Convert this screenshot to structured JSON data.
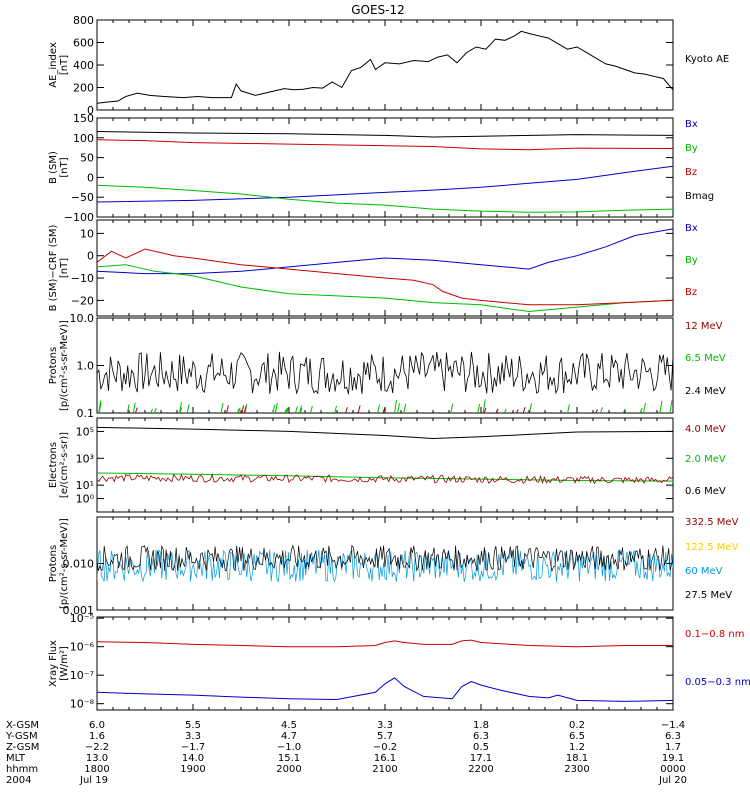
{
  "title": "GOES-12",
  "chart_data": [
    {
      "type": "line",
      "ylabel": [
        "AE_index",
        "[nT]"
      ],
      "ylim": [
        0,
        800
      ],
      "yticks": [
        "0",
        "200",
        "400",
        "600",
        "800"
      ],
      "legend": [
        {
          "label": "Kyoto AE",
          "color": "#000000"
        }
      ],
      "series": [
        {
          "name": "Kyoto AE",
          "color": "#000000",
          "points": [
            [
              0,
              60
            ],
            [
              0.1,
              70
            ],
            [
              0.22,
              80
            ],
            [
              0.3,
              120
            ],
            [
              0.42,
              150
            ],
            [
              0.55,
              130
            ],
            [
              0.7,
              120
            ],
            [
              0.9,
              110
            ],
            [
              1.05,
              120
            ],
            [
              1.2,
              110
            ],
            [
              1.4,
              110
            ],
            [
              1.45,
              230
            ],
            [
              1.5,
              170
            ],
            [
              1.65,
              130
            ],
            [
              1.8,
              160
            ],
            [
              1.95,
              190
            ],
            [
              2.05,
              180
            ],
            [
              2.15,
              185
            ],
            [
              2.25,
              200
            ],
            [
              2.35,
              195
            ],
            [
              2.45,
              250
            ],
            [
              2.55,
              200
            ],
            [
              2.65,
              350
            ],
            [
              2.75,
              380
            ],
            [
              2.85,
              450
            ],
            [
              2.9,
              360
            ],
            [
              3.0,
              420
            ],
            [
              3.15,
              410
            ],
            [
              3.3,
              440
            ],
            [
              3.45,
              430
            ],
            [
              3.55,
              470
            ],
            [
              3.65,
              490
            ],
            [
              3.75,
              420
            ],
            [
              3.85,
              510
            ],
            [
              3.95,
              560
            ],
            [
              4.05,
              540
            ],
            [
              4.15,
              630
            ],
            [
              4.25,
              620
            ],
            [
              4.35,
              660
            ],
            [
              4.42,
              700
            ],
            [
              4.5,
              680
            ],
            [
              4.6,
              660
            ],
            [
              4.7,
              640
            ],
            [
              4.8,
              590
            ],
            [
              4.9,
              540
            ],
            [
              5.0,
              560
            ],
            [
              5.1,
              510
            ],
            [
              5.2,
              460
            ],
            [
              5.3,
              410
            ],
            [
              5.4,
              390
            ],
            [
              5.5,
              360
            ],
            [
              5.6,
              330
            ],
            [
              5.7,
              320
            ],
            [
              5.8,
              300
            ],
            [
              5.9,
              280
            ],
            [
              6.0,
              180
            ]
          ]
        }
      ]
    },
    {
      "type": "line",
      "ylabel": [
        "B (SM)",
        "[nT]"
      ],
      "ylim": [
        -100,
        150
      ],
      "yticks": [
        "−100",
        "−50",
        "0",
        "50",
        "100",
        "150"
      ],
      "legend": [
        {
          "label": "Bx",
          "color": "#0000cc"
        },
        {
          "label": "By",
          "color": "#00bb00"
        },
        {
          "label": "Bz",
          "color": "#cc0000"
        },
        {
          "label": "Bmag",
          "color": "#000000"
        }
      ],
      "series": [
        {
          "name": "Bmag",
          "color": "#000000",
          "points": [
            [
              0,
              116
            ],
            [
              1,
              112
            ],
            [
              2,
              110
            ],
            [
              3,
              106
            ],
            [
              3.5,
              102
            ],
            [
              4,
              104
            ],
            [
              5,
              108
            ],
            [
              6,
              106
            ]
          ]
        },
        {
          "name": "Bz",
          "color": "#cc0000",
          "points": [
            [
              0,
              95
            ],
            [
              0.5,
              93
            ],
            [
              1,
              88
            ],
            [
              2,
              84
            ],
            [
              3,
              80
            ],
            [
              3.5,
              78
            ],
            [
              4,
              72
            ],
            [
              4.5,
              70
            ],
            [
              5,
              74
            ],
            [
              6,
              73
            ]
          ]
        },
        {
          "name": "Bx",
          "color": "#0000cc",
          "points": [
            [
              0,
              -62
            ],
            [
              1,
              -58
            ],
            [
              2,
              -50
            ],
            [
              3,
              -38
            ],
            [
              3.5,
              -32
            ],
            [
              4,
              -25
            ],
            [
              4.5,
              -15
            ],
            [
              5,
              -5
            ],
            [
              5.5,
              12
            ],
            [
              6,
              28
            ]
          ]
        },
        {
          "name": "By",
          "color": "#00bb00",
          "points": [
            [
              0,
              -20
            ],
            [
              0.5,
              -25
            ],
            [
              1,
              -33
            ],
            [
              1.5,
              -42
            ],
            [
              2,
              -55
            ],
            [
              2.5,
              -65
            ],
            [
              3,
              -70
            ],
            [
              3.5,
              -80
            ],
            [
              4,
              -85
            ],
            [
              4.5,
              -88
            ],
            [
              5,
              -87
            ],
            [
              5.5,
              -83
            ],
            [
              6,
              -80
            ]
          ]
        }
      ]
    },
    {
      "type": "line",
      "ylabel": [
        "B (SM)−CRF (SM)",
        "[nT]"
      ],
      "ylim": [
        -27,
        16
      ],
      "yticks": [
        "−20",
        "−10",
        "0",
        "10"
      ],
      "legend": [
        {
          "label": "Bx",
          "color": "#0000cc"
        },
        {
          "label": "By",
          "color": "#00bb00"
        },
        {
          "label": "Bz",
          "color": "#cc0000"
        }
      ],
      "series": [
        {
          "name": "Bx",
          "color": "#0000cc",
          "points": [
            [
              0,
              -7
            ],
            [
              0.5,
              -8
            ],
            [
              1,
              -8
            ],
            [
              1.5,
              -7
            ],
            [
              2,
              -5
            ],
            [
              2.5,
              -3
            ],
            [
              3,
              -1
            ],
            [
              3.5,
              -2
            ],
            [
              4,
              -4
            ],
            [
              4.5,
              -6
            ],
            [
              4.7,
              -3
            ],
            [
              5,
              0
            ],
            [
              5.3,
              4
            ],
            [
              5.6,
              9
            ],
            [
              6,
              12
            ]
          ]
        },
        {
          "name": "By",
          "color": "#00bb00",
          "points": [
            [
              0,
              -5
            ],
            [
              0.3,
              -4
            ],
            [
              0.6,
              -7
            ],
            [
              1,
              -9
            ],
            [
              1.5,
              -14
            ],
            [
              2,
              -17
            ],
            [
              2.5,
              -18
            ],
            [
              3,
              -19
            ],
            [
              3.5,
              -21
            ],
            [
              4,
              -22
            ],
            [
              4.5,
              -25
            ],
            [
              5,
              -23
            ],
            [
              5.5,
              -21
            ],
            [
              6,
              -20
            ]
          ]
        },
        {
          "name": "Bz",
          "color": "#cc0000",
          "points": [
            [
              0,
              -3
            ],
            [
              0.15,
              2
            ],
            [
              0.3,
              -1
            ],
            [
              0.5,
              3
            ],
            [
              0.8,
              0
            ],
            [
              1,
              -1
            ],
            [
              1.5,
              -4
            ],
            [
              2,
              -6
            ],
            [
              2.5,
              -8
            ],
            [
              3,
              -10
            ],
            [
              3.3,
              -11
            ],
            [
              3.5,
              -13
            ],
            [
              3.6,
              -16
            ],
            [
              3.8,
              -19
            ],
            [
              4,
              -20
            ],
            [
              4.5,
              -22
            ],
            [
              5,
              -22
            ],
            [
              5.5,
              -21
            ],
            [
              6,
              -20
            ]
          ]
        }
      ]
    },
    {
      "type": "line",
      "ylabel": [
        "Protons",
        "[p/(cm²-s-sr-MeV)]"
      ],
      "ylim": [
        0.1,
        10
      ],
      "log": true,
      "yticks": [
        "0.1",
        "1.0",
        "10.0"
      ],
      "legend": [
        {
          "label": "12 MeV",
          "color": "#990000"
        },
        {
          "label": "6.5 MeV",
          "color": "#00bb00"
        },
        {
          "label": "2.4 MeV",
          "color": "#000000"
        }
      ],
      "series": []
    },
    {
      "type": "line",
      "ylabel": [
        "Electrons",
        "[e/(cm²-s-sr)]"
      ],
      "ylim": [
        0.1,
        1000000
      ],
      "log": true,
      "yticks": [
        "10⁰",
        "10¹",
        "10³",
        "10⁵"
      ],
      "legend": [
        {
          "label": "4.0 MeV",
          "color": "#990000"
        },
        {
          "label": "2.0 MeV",
          "color": "#00bb00"
        },
        {
          "label": "0.6 MeV",
          "color": "#000000"
        }
      ],
      "series": [
        {
          "name": "0.6 MeV",
          "color": "#000000",
          "points": [
            [
              0,
              200000
            ],
            [
              1,
              150000
            ],
            [
              2,
              100000
            ],
            [
              3,
              50000
            ],
            [
              3.5,
              30000
            ],
            [
              4,
              40000
            ],
            [
              4.5,
              60000
            ],
            [
              5,
              90000
            ],
            [
              6,
              100000
            ]
          ]
        },
        {
          "name": "2.0 MeV",
          "color": "#00bb00",
          "points": [
            [
              0,
              80
            ],
            [
              1,
              65
            ],
            [
              2,
              50
            ],
            [
              3,
              35
            ],
            [
              4,
              28
            ],
            [
              5,
              22
            ],
            [
              6,
              20
            ]
          ]
        }
      ]
    },
    {
      "type": "line",
      "ylabel": [
        "Protons",
        "[p/(cm²-s-sr-MeV)]"
      ],
      "ylim": [
        0.001,
        0.1
      ],
      "log": true,
      "yticks": [
        "0.001",
        "0.010"
      ],
      "legend": [
        {
          "label": "332.5 MeV",
          "color": "#990000"
        },
        {
          "label": "122.5 MeV",
          "color": "#ffcc00"
        },
        {
          "label": "60 MeV",
          "color": "#0099dd"
        },
        {
          "label": "27.5 MeV",
          "color": "#000000"
        }
      ],
      "series": []
    },
    {
      "type": "line",
      "ylabel": [
        "Xray Flux",
        "[W/m²]"
      ],
      "ylim": [
        6e-09,
        1.1e-05
      ],
      "log": true,
      "yticks": [
        "10⁻⁸",
        "10⁻⁷",
        "10⁻⁶",
        "10⁻⁵"
      ],
      "legend": [
        {
          "label": "0.1−0.8 nm",
          "color": "#cc0000"
        },
        {
          "label": "0.05−0.3 nm",
          "color": "#0000cc"
        }
      ],
      "series": [
        {
          "name": "0.1−0.8 nm",
          "color": "#cc0000",
          "points": [
            [
              0,
              1.5e-06
            ],
            [
              0.5,
              1.4e-06
            ],
            [
              1,
              1.2e-06
            ],
            [
              1.5,
              1.1e-06
            ],
            [
              2,
              1e-06
            ],
            [
              2.5,
              1e-06
            ],
            [
              2.9,
              1.1e-06
            ],
            [
              3.0,
              1.4e-06
            ],
            [
              3.1,
              1.6e-06
            ],
            [
              3.2,
              1.4e-06
            ],
            [
              3.4,
              1.2e-06
            ],
            [
              3.7,
              1.2e-06
            ],
            [
              3.8,
              1.6e-06
            ],
            [
              3.9,
              1.7e-06
            ],
            [
              4.0,
              1.4e-06
            ],
            [
              4.5,
              1.1e-06
            ],
            [
              5,
              1e-06
            ],
            [
              5.5,
              1.1e-06
            ],
            [
              6,
              1.1e-06
            ]
          ]
        },
        {
          "name": "0.05−0.3 nm",
          "color": "#0000cc",
          "points": [
            [
              0,
              2.5e-08
            ],
            [
              0.5,
              2.2e-08
            ],
            [
              1,
              2e-08
            ],
            [
              1.5,
              1.7e-08
            ],
            [
              2,
              1.5e-08
            ],
            [
              2.5,
              1.4e-08
            ],
            [
              2.9,
              2.5e-08
            ],
            [
              3.0,
              5e-08
            ],
            [
              3.1,
              8e-08
            ],
            [
              3.2,
              4e-08
            ],
            [
              3.4,
              1.8e-08
            ],
            [
              3.7,
              1.5e-08
            ],
            [
              3.8,
              4e-08
            ],
            [
              3.9,
              6e-08
            ],
            [
              4.0,
              4.5e-08
            ],
            [
              4.2,
              3e-08
            ],
            [
              4.5,
              1.8e-08
            ],
            [
              4.7,
              1.6e-08
            ],
            [
              4.8,
              2e-08
            ],
            [
              5,
              1.3e-08
            ],
            [
              5.5,
              1.2e-08
            ],
            [
              6,
              1.3e-08
            ]
          ]
        }
      ]
    }
  ],
  "xaxis": {
    "rows": [
      {
        "label": "X-GSM",
        "values": [
          "6.0",
          "5.5",
          "4.5",
          "3.3",
          "1.8",
          "0.2",
          "−1.4"
        ]
      },
      {
        "label": "Y-GSM",
        "values": [
          "1.6",
          "3.3",
          "4.7",
          "5.7",
          "6.3",
          "6.5",
          "6.3"
        ]
      },
      {
        "label": "Z-GSM",
        "values": [
          "−2.2",
          "−1.7",
          "−1.0",
          "−0.2",
          "0.5",
          "1.2",
          "1.7"
        ]
      },
      {
        "label": "MLT",
        "values": [
          "13.0",
          "14.0",
          "15.1",
          "16.1",
          "17.1",
          "18.1",
          "19.1"
        ]
      },
      {
        "label": "hhmm",
        "values": [
          "1800",
          "1900",
          "2000",
          "2100",
          "2200",
          "2300",
          "0000"
        ]
      },
      {
        "label": "2004",
        "values": [
          "Jul 19",
          "",
          "",
          "",
          "",
          "",
          "Jul 20"
        ]
      }
    ]
  }
}
